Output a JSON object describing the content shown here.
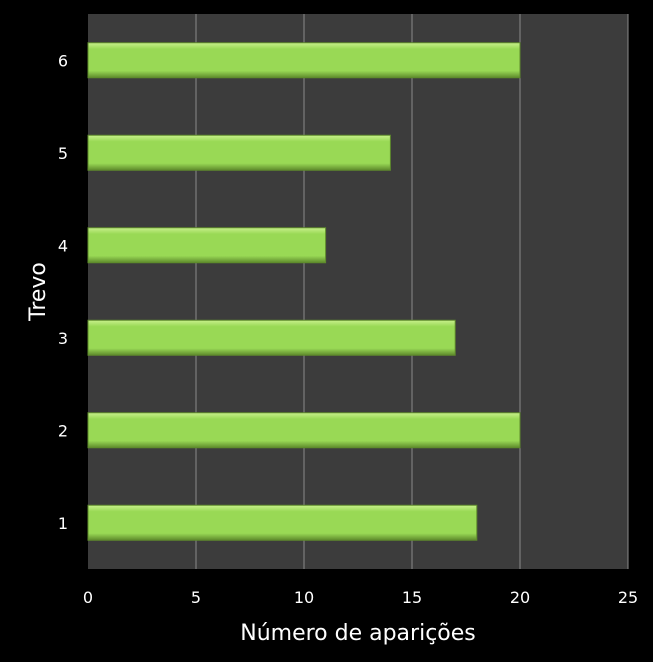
{
  "chart_data": {
    "type": "bar",
    "orientation": "horizontal",
    "categories": [
      "1",
      "2",
      "3",
      "4",
      "5",
      "6"
    ],
    "values": [
      18,
      20,
      17,
      11,
      14,
      20
    ],
    "title": "",
    "xlabel": "Número de aparições",
    "ylabel": "Trevo",
    "xlim": [
      0,
      25
    ],
    "xticks": [
      "0",
      "5",
      "10",
      "15",
      "20",
      "25"
    ],
    "grid": "vertical",
    "legend": "none",
    "colors": {
      "background": "#000000",
      "plot_area": "#3c3c3c",
      "gridline": "#8a8a8a",
      "bar_fill": "#99d955",
      "bar_highlight": "#c8f08c",
      "bar_shadow": "#5e8a2c",
      "text": "#ffffff"
    }
  }
}
